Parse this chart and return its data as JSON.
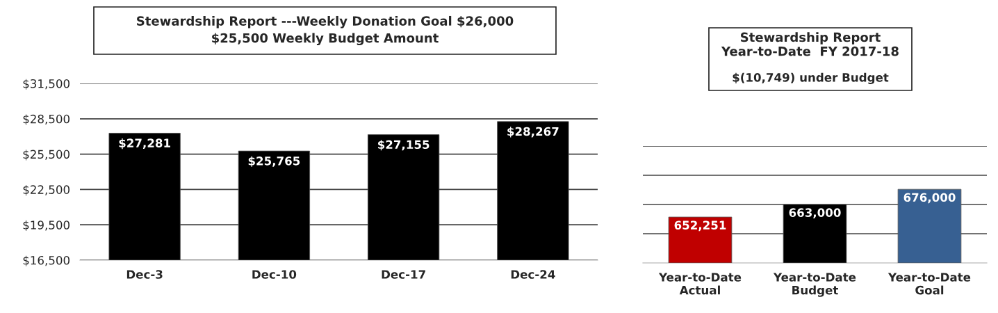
{
  "chart_data": [
    {
      "type": "bar",
      "title": "Stewardship Report ---Weekly Donation Goal $26,000\n$25,500 Weekly Budget Amount",
      "categories": [
        "Dec-3",
        "Dec-10",
        "Dec-17",
        "Dec-24"
      ],
      "values": [
        27281,
        25765,
        27155,
        28267
      ],
      "value_labels": [
        "$27,281",
        "$25,765",
        "$27,155",
        "$28,267"
      ],
      "color": "#000000",
      "ylim": [
        16500,
        31500
      ],
      "yticks": [
        {
          "value": 16500,
          "label": "$16,500"
        },
        {
          "value": 19500,
          "label": "$19,500"
        },
        {
          "value": 22500,
          "label": "$22,500"
        },
        {
          "value": 25500,
          "label": "$25,500"
        },
        {
          "value": 28500,
          "label": "$28,500"
        },
        {
          "value": 31500,
          "label": "$31,500"
        }
      ],
      "grid": "y",
      "legend": false
    },
    {
      "type": "bar",
      "title": "Stewardship Report\nYear-to-Date  FY 2017-18",
      "subtitle": "$(10,749) under Budget",
      "categories": [
        "Year-to-Date\nActual",
        "Year-to-Date\nBudget",
        "Year-to-Date\nGoal"
      ],
      "values": [
        652251,
        663000,
        676000
      ],
      "value_labels": [
        "652,251",
        "663,000",
        "676,000"
      ],
      "colors": [
        "#c00000",
        "#000000",
        "#376092"
      ],
      "ylim": [
        613000,
        713000
      ],
      "yticks": [
        {
          "value": 638000,
          "label": null
        },
        {
          "value": 663000,
          "label": null
        },
        {
          "value": 688000,
          "label": null
        },
        {
          "value": 713000,
          "label": null
        }
      ],
      "tick_labels": "x",
      "grid": "y",
      "legend": false
    }
  ]
}
